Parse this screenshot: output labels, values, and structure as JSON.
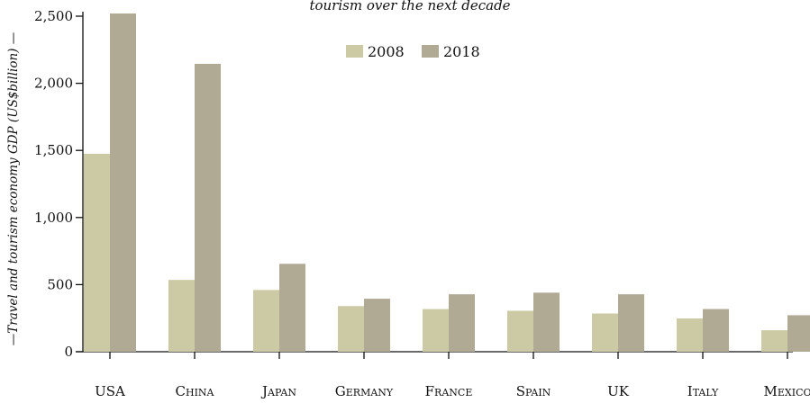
{
  "chart_data": {
    "type": "bar",
    "title": "tourism over the next decade",
    "xlabel": "",
    "ylabel": "Travel and tourism economy GDP (US$billion)",
    "categories": [
      "USA",
      "China",
      "Japan",
      "Germany",
      "France",
      "Spain",
      "UK",
      "Italy",
      "Mexico"
    ],
    "series": [
      {
        "name": "2008",
        "color": "#cccaa4",
        "values": [
          1475,
          535,
          460,
          340,
          318,
          305,
          285,
          248,
          160
        ]
      },
      {
        "name": "2018",
        "color": "#b0a994",
        "values": [
          2520,
          2145,
          655,
          395,
          428,
          440,
          428,
          318,
          272
        ]
      }
    ],
    "ylim": [
      0,
      2500
    ],
    "yticks": [
      0,
      500,
      1000,
      1500,
      2000,
      2500
    ],
    "ytick_labels": [
      "0",
      "500",
      "1,000",
      "1,500",
      "2,000",
      "2,500"
    ],
    "legend": {
      "position": "top-center",
      "entries": [
        "2008",
        "2018"
      ]
    },
    "grid": false
  }
}
